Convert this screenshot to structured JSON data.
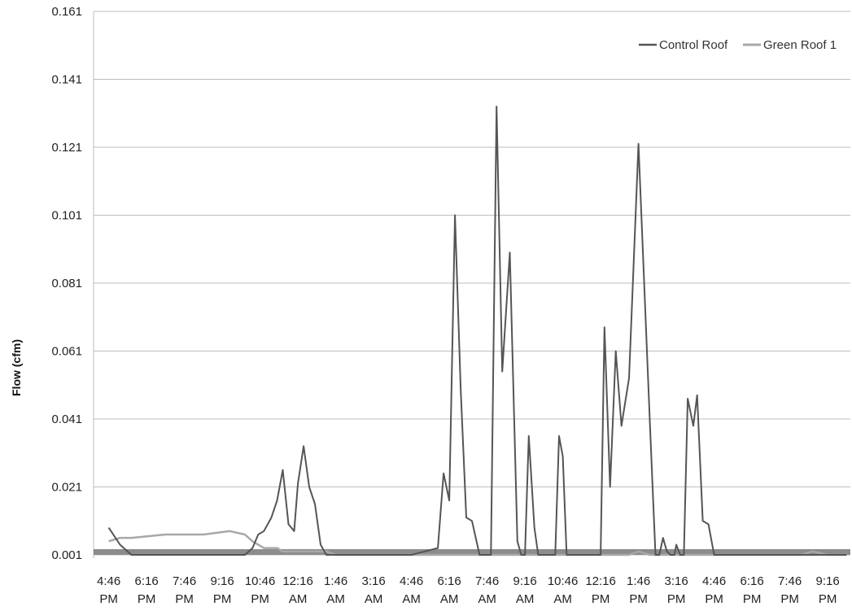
{
  "chart_data": {
    "type": "line",
    "title": "",
    "xlabel": "",
    "ylabel": "Flow (cfm)",
    "ylim": [
      0.001,
      0.161
    ],
    "yticks": [
      "0.001",
      "0.021",
      "0.041",
      "0.061",
      "0.081",
      "0.101",
      "0.121",
      "0.141",
      "0.161"
    ],
    "xticks": [
      [
        "4:46",
        "PM"
      ],
      [
        "6:16",
        "PM"
      ],
      [
        "7:46",
        "PM"
      ],
      [
        "9:16",
        "PM"
      ],
      [
        "10:46",
        "PM"
      ],
      [
        "12:16",
        "AM"
      ],
      [
        "1:46",
        "AM"
      ],
      [
        "3:16",
        "AM"
      ],
      [
        "4:46",
        "AM"
      ],
      [
        "6:16",
        "AM"
      ],
      [
        "7:46",
        "AM"
      ],
      [
        "9:16",
        "AM"
      ],
      [
        "10:46",
        "AM"
      ],
      [
        "12:16",
        "PM"
      ],
      [
        "1:46",
        "PM"
      ],
      [
        "3:16",
        "PM"
      ],
      [
        "4:46",
        "PM"
      ],
      [
        "6:16",
        "PM"
      ],
      [
        "7:46",
        "PM"
      ],
      [
        "9:16",
        "PM"
      ]
    ],
    "grid": true,
    "legend_position": "top-right",
    "x": [
      0,
      0.3,
      0.6,
      1.5,
      2.5,
      3.2,
      3.6,
      3.8,
      3.95,
      4.1,
      4.3,
      4.45,
      4.6,
      4.75,
      4.9,
      5.0,
      5.15,
      5.3,
      5.45,
      5.6,
      5.75,
      6.0,
      6.5,
      7.0,
      8.0,
      8.7,
      8.85,
      9.0,
      9.15,
      9.3,
      9.45,
      9.6,
      9.8,
      9.95,
      10.1,
      10.25,
      10.4,
      10.6,
      10.8,
      10.9,
      11.0,
      11.1,
      11.25,
      11.35,
      11.45,
      11.55,
      11.65,
      11.8,
      11.9,
      12.0,
      12.1,
      12.2,
      12.35,
      12.5,
      12.8,
      13.0,
      13.1,
      13.25,
      13.4,
      13.55,
      13.75,
      14.0,
      14.3,
      14.45,
      14.55,
      14.65,
      14.75,
      14.85,
      14.95,
      15.0,
      15.1,
      15.2,
      15.3,
      15.45,
      15.55,
      15.7,
      15.85,
      16.0,
      16.15,
      16.4,
      16.6,
      16.85,
      17.1,
      17.25,
      17.35,
      17.45,
      17.6,
      17.75,
      17.9,
      18.1,
      18.3,
      18.6,
      19.0,
      19.5
    ],
    "series": [
      {
        "name": "Control Roof",
        "color": "#555555",
        "values": [
          0.009,
          0.004,
          0.001,
          0.001,
          0.001,
          0.001,
          0.001,
          0.003,
          0.007,
          0.008,
          0.012,
          0.017,
          0.026,
          0.01,
          0.008,
          0.022,
          0.033,
          0.021,
          0.016,
          0.004,
          0.001,
          0.001,
          0.001,
          0.001,
          0.001,
          0.003,
          0.025,
          0.017,
          0.101,
          0.05,
          0.012,
          0.011,
          0.001,
          0.001,
          0.001,
          0.133,
          0.055,
          0.09,
          0.005,
          0.001,
          0.001,
          0.036,
          0.009,
          0.001,
          0.001,
          0.001,
          0.001,
          0.001,
          0.036,
          0.03,
          0.001,
          0.001,
          0.001,
          0.001,
          0.001,
          0.001,
          0.068,
          0.021,
          0.061,
          0.039,
          0.053,
          0.122,
          0.04,
          0.001,
          0.001,
          0.006,
          0.002,
          0.001,
          0.001,
          0.004,
          0.001,
          0.001,
          0.047,
          0.039,
          0.048,
          0.011,
          0.01,
          0.001,
          0.001,
          0.001,
          0.001,
          0.001,
          0.001,
          0.001,
          0.001,
          0.001,
          0.001,
          0.001,
          0.001,
          0.001,
          0.001,
          0.001,
          0.001,
          0.001
        ]
      },
      {
        "name": "Green Roof 1",
        "color": "#a8a8a8",
        "values": [
          0.005,
          0.006,
          0.006,
          0.007,
          0.007,
          0.008,
          0.007,
          0.005,
          0.004,
          0.003,
          0.003,
          0.003,
          0.002,
          0.002,
          0.002,
          0.002,
          0.002,
          0.002,
          0.002,
          0.002,
          0.002,
          0.001,
          0.001,
          0.001,
          0.001,
          0.001,
          0.001,
          0.001,
          0.001,
          0.001,
          0.001,
          0.001,
          0.001,
          0.001,
          0.001,
          0.001,
          0.001,
          0.001,
          0.001,
          0.001,
          0.001,
          0.001,
          0.001,
          0.001,
          0.001,
          0.001,
          0.001,
          0.001,
          0.001,
          0.001,
          0.001,
          0.001,
          0.001,
          0.001,
          0.001,
          0.001,
          0.001,
          0.001,
          0.001,
          0.001,
          0.001,
          0.002,
          0.001,
          0.001,
          0.001,
          0.001,
          0.001,
          0.001,
          0.001,
          0.001,
          0.001,
          0.001,
          0.001,
          0.001,
          0.001,
          0.001,
          0.001,
          0.001,
          0.001,
          0.001,
          0.001,
          0.001,
          0.001,
          0.001,
          0.001,
          0.001,
          0.001,
          0.001,
          0.001,
          0.001,
          0.001,
          0.002,
          0.001,
          0.001
        ]
      }
    ]
  }
}
